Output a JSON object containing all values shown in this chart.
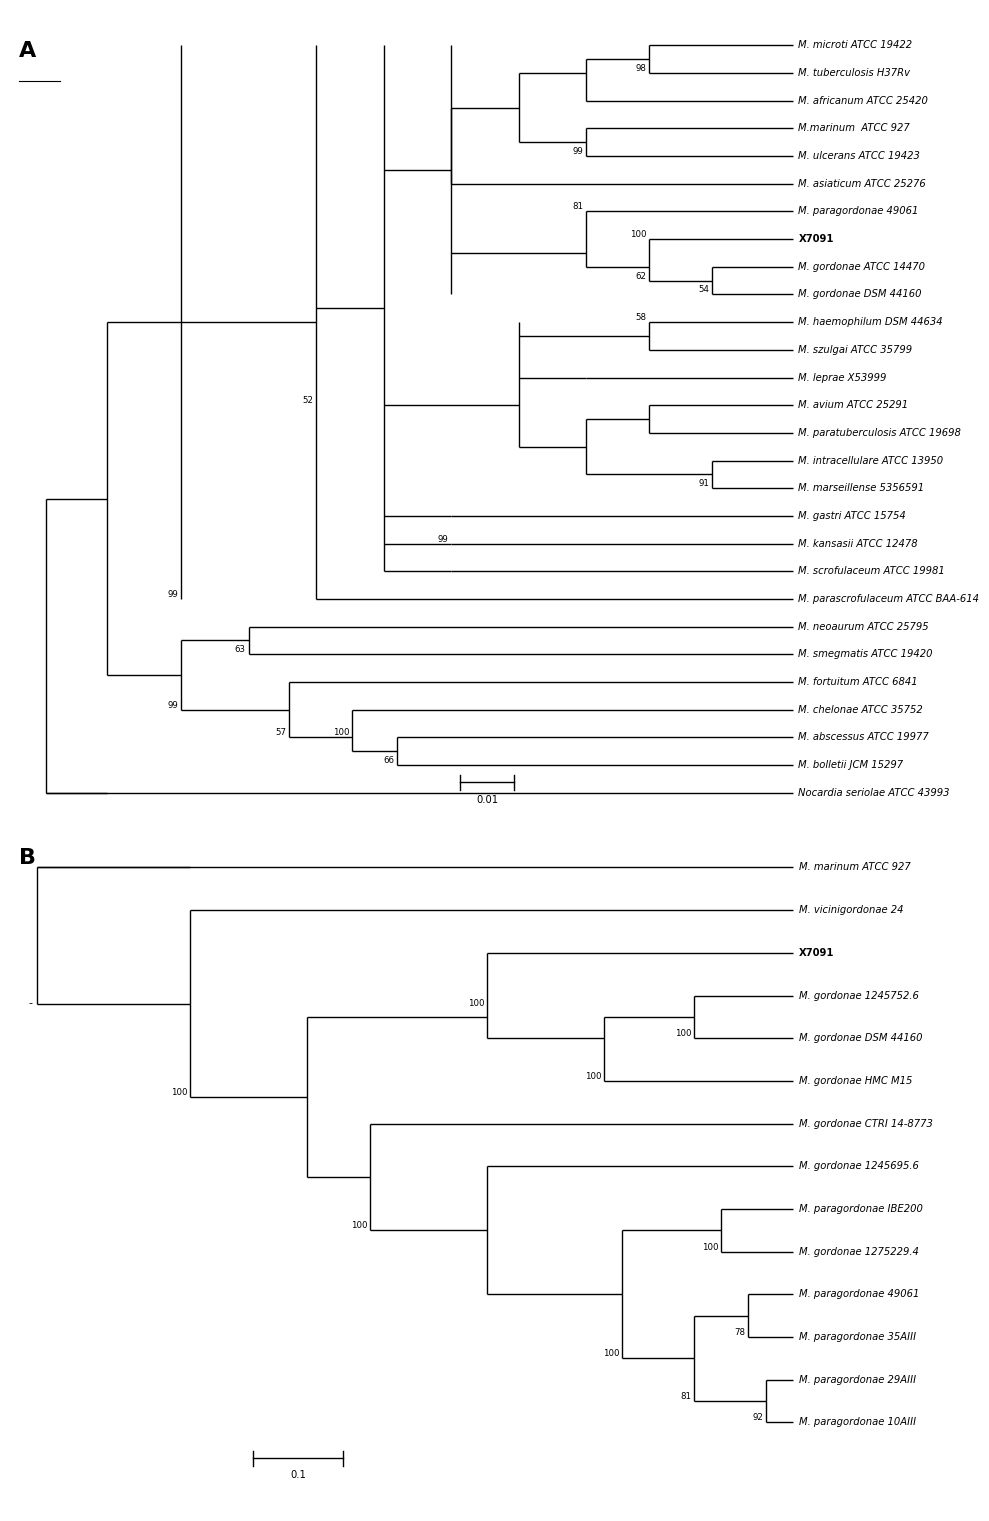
{
  "panel_A": {
    "leaves": [
      "M. microti ATCC 19422",
      "M. tuberculosis H37Rv",
      "M. africanum ATCC 25420",
      "M.marinum  ATCC 927",
      "M. ulcerans ATCC 19423",
      "M. asiaticum ATCC 25276",
      "M. paragordonae 49061",
      "X7091",
      "M. gordonae ATCC 14470",
      "M. gordonae DSM 44160",
      "M. haemophilum DSM 44634",
      "M. szulgai ATCC 35799",
      "M. leprae X53999",
      "M. avium ATCC 25291",
      "M. paratuberculosis ATCC 19698",
      "M. intracellulare ATCC 13950",
      "M. marseillense 5356591",
      "M. gastri ATCC 15754",
      "M. kansasii ATCC 12478",
      "M. scrofulaceum ATCC 19981",
      "M. parascrofulaceum ATCC BAA-614",
      "M. neoaurum ATCC 25795",
      "M. smegmatis ATCC 19420",
      "M. fortuitum ATCC 6841",
      "M. chelonae ATCC 35752",
      "M. abscessus ATCC 19977",
      "M. bolletii JCM 15297",
      "Nocardia seriolae ATCC 43993"
    ],
    "bold_leaves": [
      "X7091"
    ],
    "italic_leaves": [
      "M. microti ATCC 19422",
      "M. tuberculosis H37Rv",
      "M. africanum ATCC 25420",
      "M.marinum  ATCC 927",
      "M. ulcerans ATCC 19423",
      "M. asiaticum ATCC 25276",
      "M. paragordonae 49061",
      "M. gordonae ATCC 14470",
      "M. gordonae DSM 44160",
      "M. haemophilum DSM 44634",
      "M. szulgai ATCC 35799",
      "M. leprae X53999",
      "M. avium ATCC 25291",
      "M. paratuberculosis ATCC 19698",
      "M. intracellulare ATCC 13950",
      "M. marseillense 5356591",
      "M. gastri ATCC 15754",
      "M. kansasii ATCC 12478",
      "M. scrofulaceum ATCC 19981",
      "M. parascrofulaceum ATCC BAA-614",
      "M. neoaurum ATCC 25795",
      "M. smegmatis ATCC 19420",
      "M. fortuitum ATCC 6841",
      "M. chelonae ATCC 35752",
      "M. abscessus ATCC 19977",
      "M. bolletii JCM 15297",
      "Nocardia seriolae ATCC 43993"
    ],
    "scale_label": "0.01",
    "lw": 1.0,
    "fs": 7.2,
    "bfs": 6.2
  },
  "panel_B": {
    "leaves": [
      "M. marinum ATCC 927",
      "M. vicinigordonae 24",
      "X7091",
      "M. gordonae 1245752.6",
      "M. gordonae DSM 44160",
      "M. gordonae HMC M15",
      "M. gordonae CTRI 14-8773",
      "M. gordonae 1245695.6",
      "M. paragordonae IBE200",
      "M. gordonae 1275229.4",
      "M. paragordonae 49061",
      "M. paragordonae 35AIII",
      "M. paragordonae 29AIII",
      "M. paragordonae 10AIII"
    ],
    "bold_leaves": [
      "X7091"
    ],
    "italic_leaves": [
      "M. marinum ATCC 927",
      "M. vicinigordonae 24",
      "M. gordonae 1245752.6",
      "M. gordonae DSM 44160",
      "M. gordonae HMC M15",
      "M. gordonae CTRI 14-8773",
      "M. gordonae 1245695.6",
      "M. paragordonae IBE200",
      "M. gordonae 1275229.4",
      "M. paragordonae 49061",
      "M. paragordonae 35AIII",
      "M. paragordonae 29AIII",
      "M. paragordonae 10AIII"
    ],
    "scale_label": "0.1",
    "lw": 1.0,
    "fs": 7.2,
    "bfs": 6.2
  }
}
